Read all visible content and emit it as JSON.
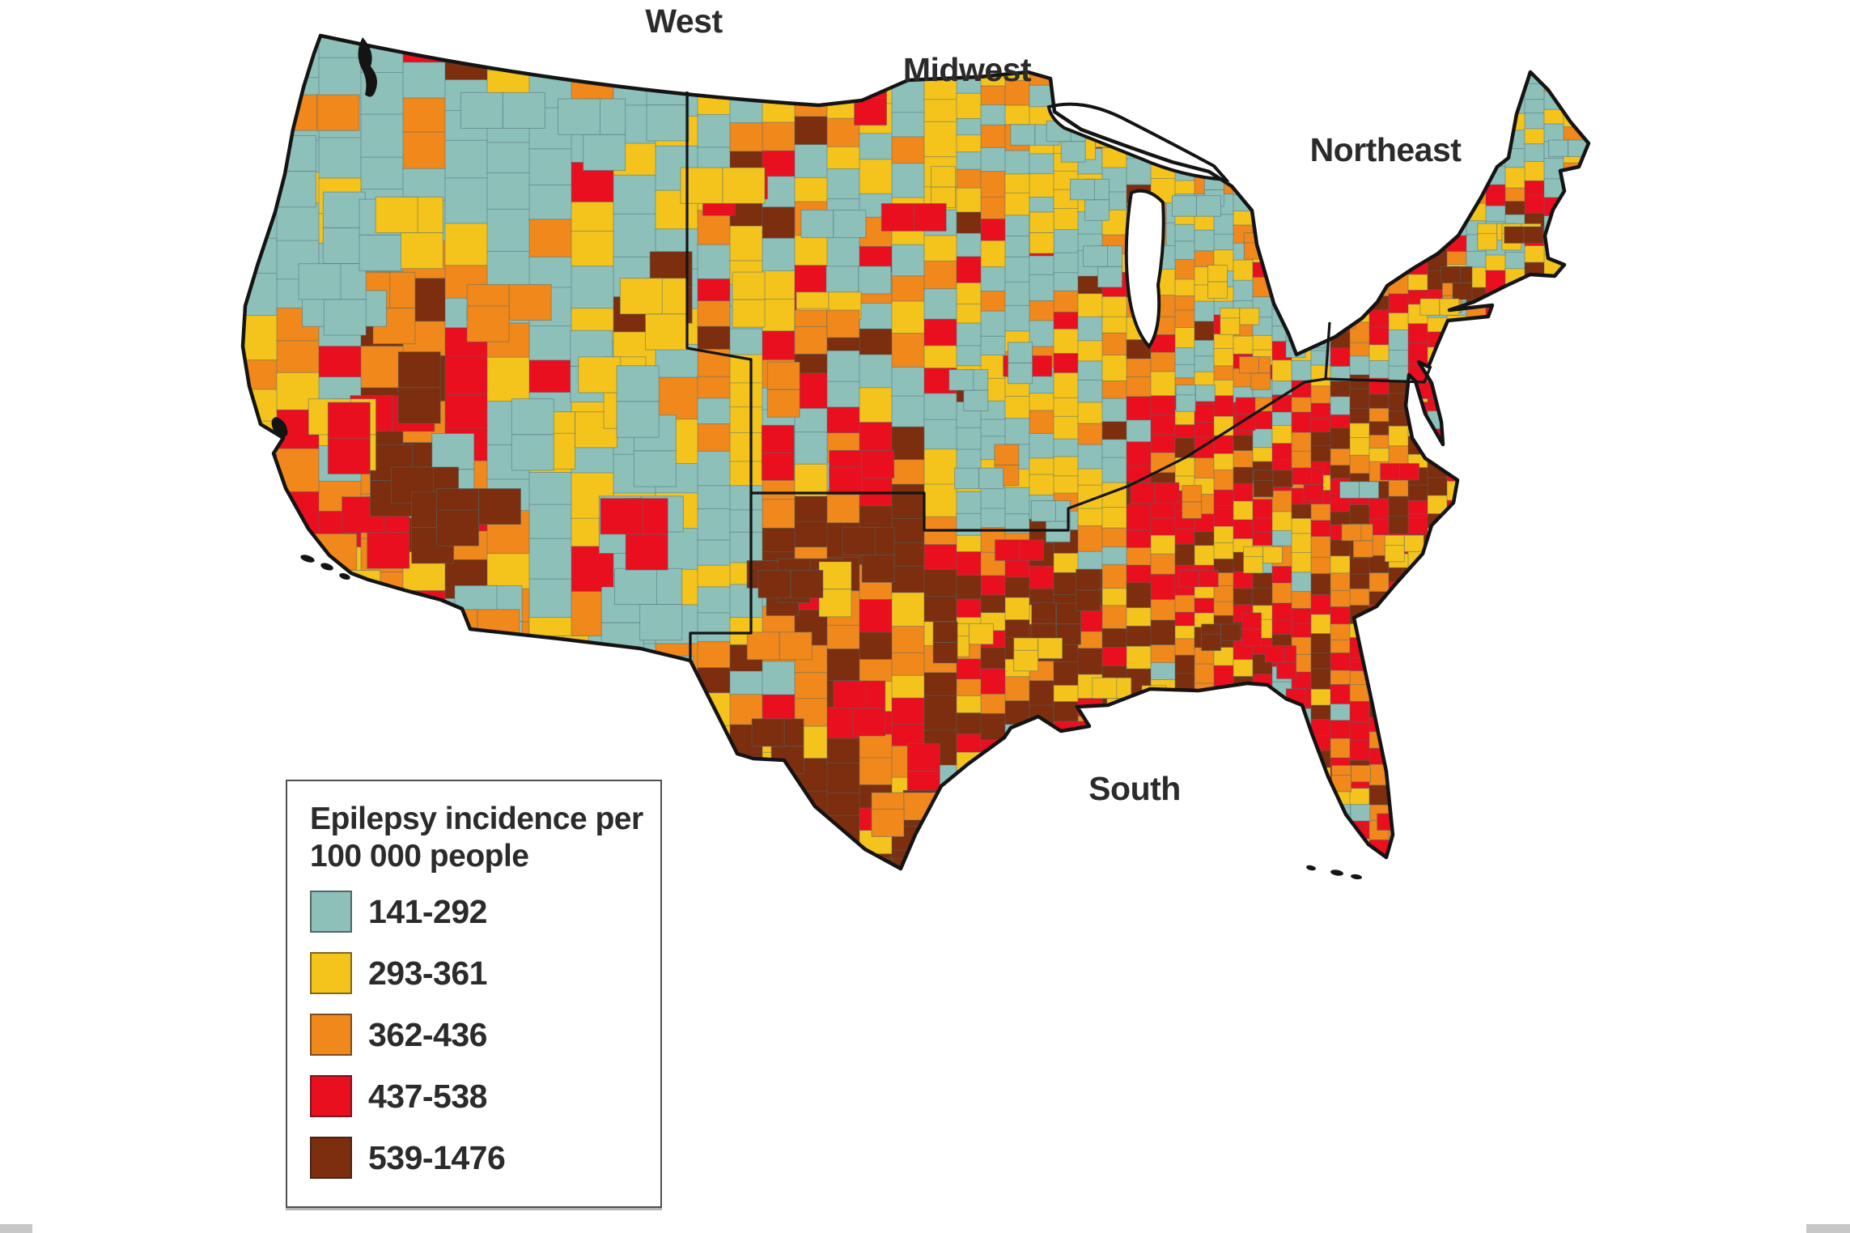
{
  "figure": {
    "kind": "choropleth map of the contiguous United States",
    "background_color": "#ffffff",
    "region_labels": [
      {
        "id": "west",
        "text": "West"
      },
      {
        "id": "midwest",
        "text": "Midwest"
      },
      {
        "id": "northeast",
        "text": "Northeast"
      },
      {
        "id": "south",
        "text": "South"
      }
    ],
    "legend": {
      "title_line1": "Epilepsy incidence per",
      "title_line2": "100 000 people",
      "items": [
        {
          "key": "teal",
          "range": "141-292",
          "color": "#8EC0BA"
        },
        {
          "key": "yellow",
          "range": "293-361",
          "color": "#F5C41C"
        },
        {
          "key": "orange",
          "range": "362-436",
          "color": "#F0881C"
        },
        {
          "key": "red",
          "range": "437-538",
          "color": "#E90F1E"
        },
        {
          "key": "brown",
          "range": "539-1476",
          "color": "#7C2E0E"
        }
      ]
    }
  },
  "chart_data": {
    "type": "heatmap",
    "subtype": "choropleth",
    "title": "Epilepsy incidence per 100 000 people",
    "unit": "incidence per 100 000 people",
    "value_range": [
      141,
      1476
    ],
    "classes": [
      {
        "label": "141-292",
        "min": 141,
        "max": 292,
        "color": "#8EC0BA"
      },
      {
        "label": "293-361",
        "min": 293,
        "max": 361,
        "color": "#F5C41C"
      },
      {
        "label": "362-436",
        "min": 362,
        "max": 436,
        "color": "#F0881C"
      },
      {
        "label": "437-538",
        "min": 437,
        "max": 538,
        "color": "#E90F1E"
      },
      {
        "label": "539-1476",
        "min": 539,
        "max": 1476,
        "color": "#7C2E0E"
      }
    ],
    "regions": [
      {
        "name": "West",
        "dominant_classes": [
          "141-292",
          "293-361"
        ]
      },
      {
        "name": "Midwest",
        "dominant_classes": [
          "141-292",
          "293-361",
          "362-436"
        ]
      },
      {
        "name": "Northeast",
        "dominant_classes": [
          "293-361",
          "437-538",
          "362-436"
        ]
      },
      {
        "name": "South",
        "dominant_classes": [
          "539-1476",
          "437-538",
          "362-436"
        ]
      }
    ],
    "legend_position": "bottom-left"
  },
  "render": {
    "region_color_weights": {
      "west": {
        "teal": 0.6,
        "yellow": 0.22,
        "orange": 0.1,
        "red": 0.05,
        "brown": 0.03
      },
      "midwest": {
        "teal": 0.42,
        "yellow": 0.27,
        "orange": 0.15,
        "red": 0.09,
        "brown": 0.07
      },
      "northeast": {
        "teal": 0.2,
        "yellow": 0.28,
        "orange": 0.22,
        "red": 0.19,
        "brown": 0.11
      },
      "south": {
        "teal": 0.06,
        "yellow": 0.16,
        "orange": 0.27,
        "red": 0.26,
        "brown": 0.25
      }
    }
  }
}
